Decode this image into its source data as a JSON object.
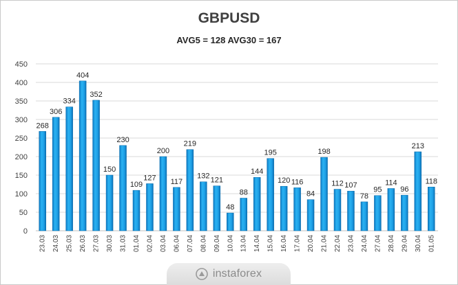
{
  "chart_data": {
    "type": "bar",
    "title": "GBPUSD",
    "subtitle": "AVG5 = 128 AVG30 = 167",
    "categories": [
      "23.03",
      "24.03",
      "25.03",
      "26.03",
      "27.03",
      "30.03",
      "31.03",
      "01.04",
      "02.04",
      "03.04",
      "06.04",
      "07.04",
      "08.04",
      "09.04",
      "10.04",
      "13.04",
      "14.04",
      "15.04",
      "16.04",
      "17.04",
      "20.04",
      "21.04",
      "22.04",
      "23.04",
      "24.04",
      "27.04",
      "28.04",
      "29.04",
      "30.04",
      "01.05"
    ],
    "values": [
      268,
      306,
      334,
      404,
      352,
      150,
      230,
      109,
      127,
      200,
      117,
      219,
      132,
      121,
      48,
      88,
      144,
      195,
      120,
      116,
      84,
      198,
      112,
      107,
      78,
      95,
      114,
      96,
      213,
      118
    ],
    "yticks": [
      0,
      50,
      100,
      150,
      200,
      250,
      300,
      350,
      400,
      450
    ],
    "ylim": [
      0,
      450
    ],
    "grid": true,
    "bar_color": "#1ea0e6"
  },
  "watermark": {
    "text": "instaforex"
  }
}
